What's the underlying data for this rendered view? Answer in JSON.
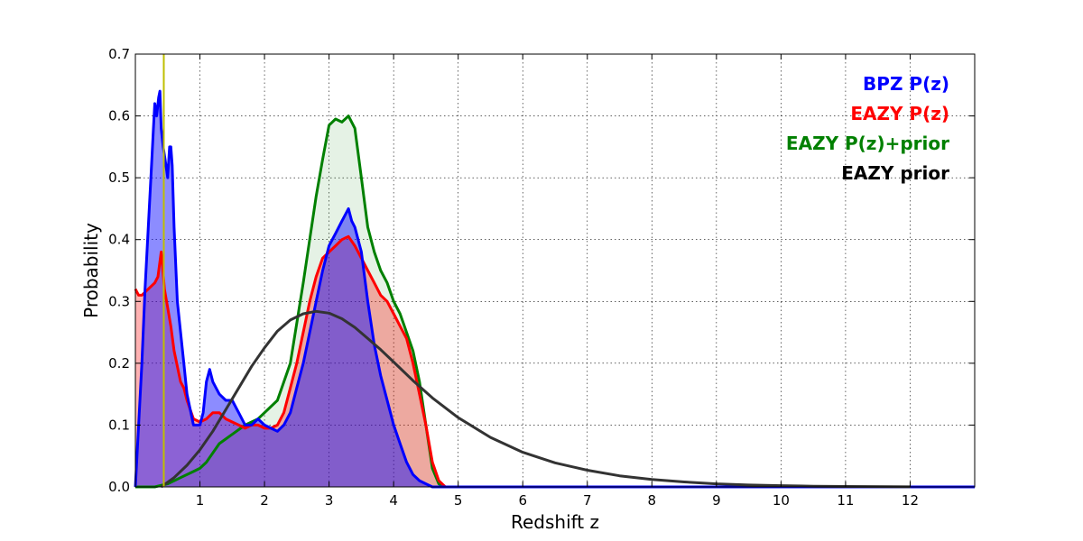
{
  "chart_data": {
    "type": "area",
    "xlabel": "Redshift z",
    "ylabel": "Probability",
    "xlim": [
      0,
      13
    ],
    "ylim": [
      0,
      0.7
    ],
    "xticks": [
      1,
      2,
      3,
      4,
      5,
      6,
      7,
      8,
      9,
      10,
      11,
      12
    ],
    "yticks": [
      0.0,
      0.1,
      0.2,
      0.3,
      0.4,
      0.5,
      0.6,
      0.7
    ],
    "xtick_labels": [
      "1",
      "2",
      "3",
      "4",
      "5",
      "6",
      "7",
      "8",
      "9",
      "10",
      "11",
      "12"
    ],
    "ytick_labels": [
      "0.0",
      "0.1",
      "0.2",
      "0.3",
      "0.4",
      "0.5",
      "0.6",
      "0.7"
    ],
    "grid": true,
    "legend_position": "top-right",
    "vline": {
      "x": 0.44,
      "color": "#bfbf00"
    },
    "series": [
      {
        "name": "EAZY P(z)+prior",
        "color": "#008000",
        "fill_opacity": 0.1,
        "x": [
          0,
          0.3,
          0.5,
          0.7,
          0.9,
          1.0,
          1.1,
          1.3,
          1.5,
          1.7,
          1.9,
          2.0,
          2.2,
          2.4,
          2.6,
          2.8,
          2.9,
          3.0,
          3.1,
          3.2,
          3.3,
          3.4,
          3.5,
          3.6,
          3.7,
          3.8,
          3.9,
          4.0,
          4.1,
          4.2,
          4.3,
          4.4,
          4.5,
          4.6,
          4.7,
          4.8,
          5.0,
          6.0,
          8.0,
          10.0,
          12.0,
          13.0
        ],
        "y": [
          0,
          0.0,
          0.005,
          0.015,
          0.025,
          0.03,
          0.04,
          0.07,
          0.085,
          0.1,
          0.11,
          0.12,
          0.14,
          0.2,
          0.33,
          0.47,
          0.53,
          0.585,
          0.595,
          0.59,
          0.6,
          0.58,
          0.5,
          0.42,
          0.38,
          0.35,
          0.33,
          0.3,
          0.28,
          0.25,
          0.22,
          0.17,
          0.1,
          0.03,
          0.005,
          0.0,
          0.0,
          0.0,
          0.0,
          0.0,
          0.0,
          0.0
        ]
      },
      {
        "name": "EAZY P(z)",
        "color": "#ff0000",
        "fill_opacity": 0.3,
        "x": [
          0,
          0.05,
          0.1,
          0.2,
          0.3,
          0.35,
          0.4,
          0.42,
          0.45,
          0.5,
          0.55,
          0.6,
          0.7,
          0.75,
          0.8,
          0.9,
          1.0,
          1.1,
          1.2,
          1.3,
          1.4,
          1.5,
          1.6,
          1.7,
          1.8,
          1.9,
          2.0,
          2.1,
          2.2,
          2.3,
          2.4,
          2.5,
          2.6,
          2.7,
          2.8,
          2.9,
          3.0,
          3.1,
          3.2,
          3.3,
          3.4,
          3.5,
          3.6,
          3.7,
          3.8,
          3.9,
          4.0,
          4.1,
          4.2,
          4.3,
          4.4,
          4.5,
          4.6,
          4.7,
          4.8,
          5.0,
          6.0,
          8.0,
          13.0
        ],
        "y": [
          0.32,
          0.31,
          0.31,
          0.32,
          0.33,
          0.34,
          0.38,
          0.36,
          0.32,
          0.29,
          0.26,
          0.22,
          0.17,
          0.16,
          0.14,
          0.11,
          0.105,
          0.11,
          0.12,
          0.12,
          0.11,
          0.105,
          0.1,
          0.095,
          0.1,
          0.1,
          0.095,
          0.095,
          0.1,
          0.12,
          0.16,
          0.2,
          0.25,
          0.3,
          0.34,
          0.37,
          0.38,
          0.39,
          0.4,
          0.405,
          0.39,
          0.37,
          0.35,
          0.33,
          0.31,
          0.3,
          0.28,
          0.26,
          0.24,
          0.2,
          0.15,
          0.1,
          0.04,
          0.01,
          0.0,
          0.0,
          0.0,
          0.0,
          0.0
        ]
      },
      {
        "name": "BPZ P(z)",
        "color": "#0000ff",
        "fill_opacity": 0.45,
        "x": [
          0,
          0.05,
          0.1,
          0.15,
          0.2,
          0.25,
          0.28,
          0.3,
          0.33,
          0.36,
          0.38,
          0.4,
          0.43,
          0.46,
          0.5,
          0.53,
          0.55,
          0.57,
          0.6,
          0.65,
          0.7,
          0.75,
          0.8,
          0.9,
          1.0,
          1.05,
          1.1,
          1.15,
          1.2,
          1.3,
          1.4,
          1.5,
          1.6,
          1.7,
          1.8,
          1.9,
          2.0,
          2.1,
          2.2,
          2.3,
          2.4,
          2.5,
          2.6,
          2.7,
          2.8,
          2.9,
          3.0,
          3.1,
          3.2,
          3.25,
          3.3,
          3.35,
          3.4,
          3.5,
          3.6,
          3.7,
          3.8,
          3.9,
          4.0,
          4.1,
          4.2,
          4.3,
          4.4,
          4.5,
          4.6,
          4.7,
          5.0,
          8.0,
          13.0
        ],
        "y": [
          0.0,
          0.1,
          0.2,
          0.32,
          0.42,
          0.52,
          0.58,
          0.62,
          0.6,
          0.63,
          0.64,
          0.58,
          0.55,
          0.53,
          0.5,
          0.55,
          0.55,
          0.52,
          0.42,
          0.3,
          0.25,
          0.2,
          0.15,
          0.1,
          0.1,
          0.12,
          0.17,
          0.19,
          0.17,
          0.15,
          0.14,
          0.14,
          0.12,
          0.1,
          0.1,
          0.11,
          0.1,
          0.095,
          0.09,
          0.1,
          0.12,
          0.16,
          0.2,
          0.25,
          0.3,
          0.35,
          0.39,
          0.41,
          0.43,
          0.44,
          0.45,
          0.43,
          0.42,
          0.38,
          0.3,
          0.23,
          0.18,
          0.14,
          0.1,
          0.07,
          0.04,
          0.02,
          0.01,
          0.005,
          0.0,
          0.0,
          0.0,
          0.0,
          0.0
        ]
      },
      {
        "name": "EAZY prior",
        "color": "#333333",
        "fill_opacity": 0,
        "x": [
          0.4,
          0.6,
          0.8,
          1.0,
          1.2,
          1.4,
          1.6,
          1.8,
          2.0,
          2.2,
          2.4,
          2.6,
          2.8,
          3.0,
          3.2,
          3.4,
          3.6,
          3.8,
          4.0,
          4.3,
          4.6,
          5.0,
          5.5,
          6.0,
          6.5,
          7.0,
          7.5,
          8.0,
          8.5,
          9.0,
          9.5,
          10.0,
          10.5,
          11.0,
          12.0
        ],
        "y": [
          0.0,
          0.015,
          0.035,
          0.06,
          0.09,
          0.125,
          0.16,
          0.195,
          0.225,
          0.252,
          0.27,
          0.28,
          0.284,
          0.281,
          0.272,
          0.258,
          0.24,
          0.222,
          0.202,
          0.172,
          0.144,
          0.112,
          0.08,
          0.056,
          0.039,
          0.027,
          0.018,
          0.012,
          0.008,
          0.005,
          0.003,
          0.002,
          0.0012,
          0.0007,
          0.0002
        ]
      }
    ],
    "legend": [
      {
        "label": "BPZ P(z)",
        "color": "#0000ff"
      },
      {
        "label": "EAZY P(z)",
        "color": "#ff0000"
      },
      {
        "label": "EAZY P(z)+prior",
        "color": "#008000"
      },
      {
        "label": "EAZY prior",
        "color": "#000000"
      }
    ]
  }
}
